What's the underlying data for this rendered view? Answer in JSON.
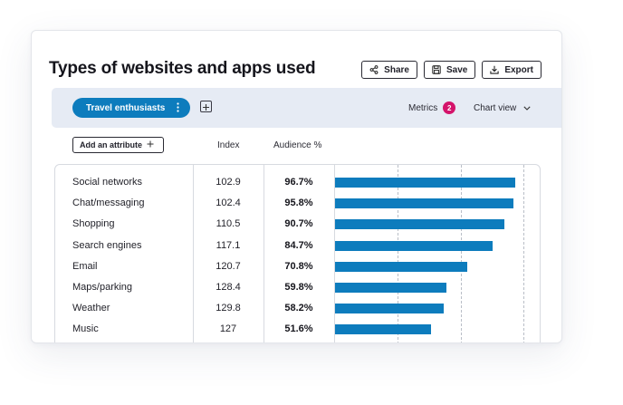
{
  "title": "Types of websites and apps used",
  "actions": {
    "share_label": "Share",
    "save_label": "Save",
    "export_label": "Export"
  },
  "toolbar": {
    "segment_label": "Travel enthusiasts",
    "metrics_label": "Metrics",
    "metrics_count": "2",
    "chart_view_label": "Chart view"
  },
  "table": {
    "add_attribute_label": "Add an attribute",
    "index_header": "Index",
    "audience_header": "Audience %",
    "rows": [
      {
        "name": "Social networks",
        "index": "102.9",
        "audience": "96.7%",
        "value": 96.7
      },
      {
        "name": "Chat/messaging",
        "index": "102.4",
        "audience": "95.8%",
        "value": 95.8
      },
      {
        "name": "Shopping",
        "index": "110.5",
        "audience": "90.7%",
        "value": 90.7
      },
      {
        "name": "Search engines",
        "index": "117.1",
        "audience": "84.7%",
        "value": 84.7
      },
      {
        "name": "Email",
        "index": "120.7",
        "audience": "70.8%",
        "value": 70.8
      },
      {
        "name": "Maps/parking",
        "index": "128.4",
        "audience": "59.8%",
        "value": 59.8
      },
      {
        "name": "Weather",
        "index": "129.8",
        "audience": "58.2%",
        "value": 58.2
      },
      {
        "name": "Music",
        "index": "127",
        "audience": "51.6%",
        "value": 51.6
      }
    ]
  },
  "colors": {
    "accent": "#0d7cbd",
    "badge": "#d4146b",
    "toolbar_bg": "#e6ebf4"
  },
  "icons": [
    "share-icon",
    "save-icon",
    "export-icon",
    "kebab-icon",
    "plus-icon",
    "chevron-down-icon"
  ]
}
